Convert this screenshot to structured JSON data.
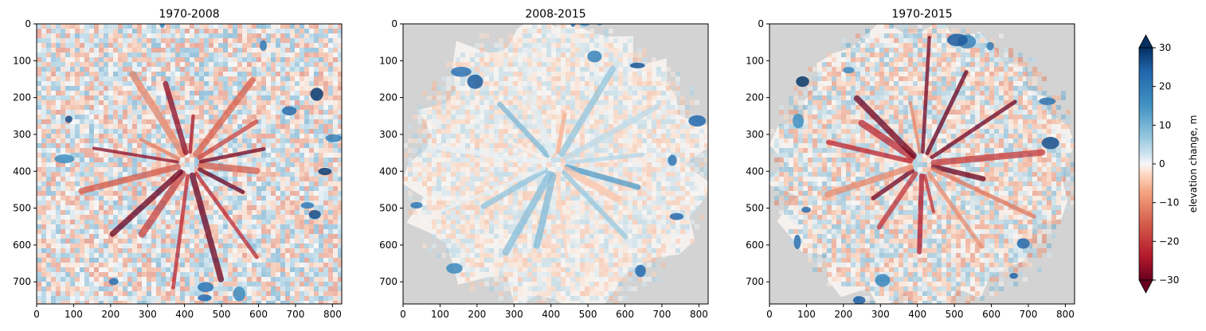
{
  "chart_data": {
    "type": "heatmap",
    "colormap": "RdBu",
    "nodata_color": "#d3d3d3",
    "panels": [
      {
        "title": "1970-2008",
        "xlim": [
          0,
          825
        ],
        "ylim": [
          760,
          0
        ],
        "xticks": [
          "0",
          "100",
          "200",
          "300",
          "400",
          "500",
          "600",
          "700",
          "800"
        ],
        "yticks": [
          "0",
          "100",
          "200",
          "300",
          "400",
          "500",
          "600",
          "700"
        ],
        "coverage": "full",
        "description": "dense mosaic of negative (red) and positive (blue) elevation change across entire extent"
      },
      {
        "title": "2008-2015",
        "xlim": [
          0,
          825
        ],
        "ylim": [
          760,
          0
        ],
        "xticks": [
          "0",
          "100",
          "200",
          "300",
          "400",
          "500",
          "600",
          "700",
          "800"
        ],
        "yticks": [
          "0",
          "100",
          "200",
          "300",
          "400",
          "500",
          "600",
          "700"
        ],
        "coverage": "radial, gray no-data background",
        "description": "mostly near-zero change with blue patches at margins"
      },
      {
        "title": "1970-2015",
        "xlim": [
          0,
          825
        ],
        "ylim": [
          760,
          0
        ],
        "xticks": [
          "0",
          "100",
          "200",
          "300",
          "400",
          "500",
          "600",
          "700",
          "800"
        ],
        "yticks": [
          "0",
          "100",
          "200",
          "300",
          "400",
          "500",
          "600",
          "700"
        ],
        "coverage": "radial, gray no-data background",
        "description": "strong red thinning along radial glaciers, blue thickening patches at margins"
      }
    ],
    "colorbar": {
      "label": "elevation change, m",
      "vmin": -30,
      "vmax": 30,
      "ticks": [
        30,
        20,
        10,
        0,
        -10,
        -20,
        -30
      ],
      "ticklabels": [
        "30",
        "20",
        "10",
        "0",
        "−10",
        "−20",
        "−30"
      ],
      "extend": "both"
    }
  }
}
